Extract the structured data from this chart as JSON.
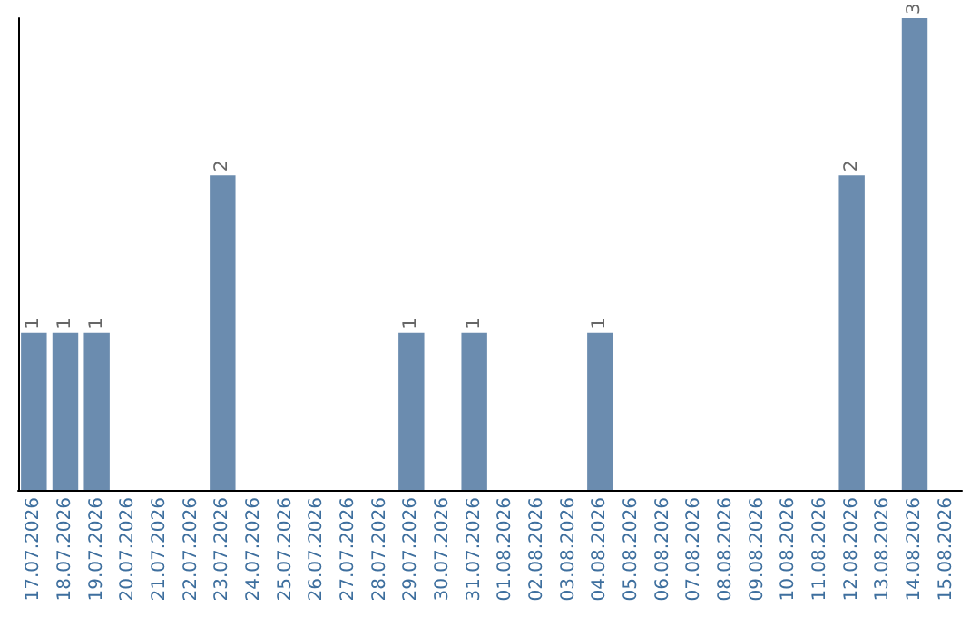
{
  "chart_data": {
    "type": "bar",
    "categories": [
      "17.07.2026",
      "18.07.2026",
      "19.07.2026",
      "20.07.2026",
      "21.07.2026",
      "22.07.2026",
      "23.07.2026",
      "24.07.2026",
      "25.07.2026",
      "26.07.2026",
      "27.07.2026",
      "28.07.2026",
      "29.07.2026",
      "30.07.2026",
      "31.07.2026",
      "01.08.2026",
      "02.08.2026",
      "03.08.2026",
      "04.08.2026",
      "05.08.2026",
      "06.08.2026",
      "07.08.2026",
      "08.08.2026",
      "09.08.2026",
      "10.08.2026",
      "11.08.2026",
      "12.08.2026",
      "13.08.2026",
      "14.08.2026",
      "15.08.2026"
    ],
    "values": [
      1,
      1,
      1,
      0,
      0,
      0,
      2,
      0,
      0,
      0,
      0,
      0,
      1,
      0,
      1,
      0,
      0,
      0,
      1,
      0,
      0,
      0,
      0,
      0,
      0,
      0,
      2,
      0,
      3,
      0
    ],
    "value_labels": [
      "1",
      "1",
      "1",
      null,
      null,
      null,
      "2",
      null,
      null,
      null,
      null,
      null,
      "1",
      null,
      "1",
      null,
      null,
      null,
      "1",
      null,
      null,
      null,
      null,
      null,
      null,
      null,
      "2",
      null,
      "3",
      null
    ],
    "color": "#6b8caf",
    "tick_labels": "x"
  }
}
